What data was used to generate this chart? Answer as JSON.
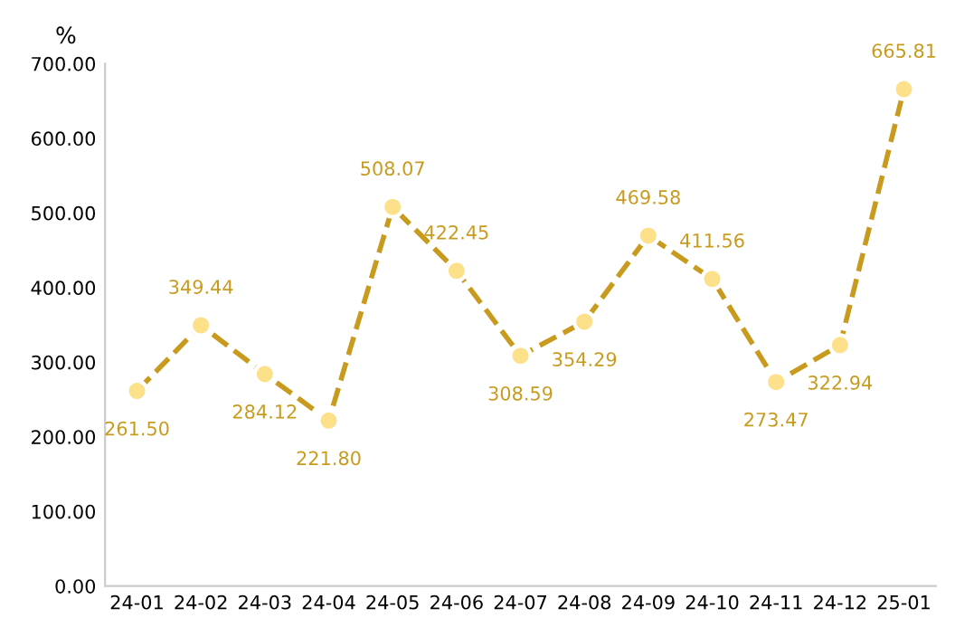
{
  "chart_data": {
    "type": "line",
    "ylabel": "%",
    "categories": [
      "24-01",
      "24-02",
      "24-03",
      "24-04",
      "24-05",
      "24-06",
      "24-07",
      "24-08",
      "24-09",
      "24-10",
      "24-11",
      "24-12",
      "25-01"
    ],
    "series": [
      {
        "color": "#c89b1e",
        "values": [
          261.5,
          349.44,
          284.12,
          221.8,
          508.07,
          422.45,
          308.59,
          354.29,
          469.58,
          411.56,
          273.47,
          322.94,
          665.81
        ],
        "value_labels": [
          "261.50",
          "349.44",
          "284.12",
          "221.80",
          "508.07",
          "422.45",
          "308.59",
          "354.29",
          "469.58",
          "411.56",
          "273.47",
          "322.94",
          "665.81"
        ]
      }
    ],
    "ylim": [
      0,
      700
    ],
    "yticks": [
      {
        "value": 0,
        "label": "0.00"
      },
      {
        "value": 100,
        "label": "100.00"
      },
      {
        "value": 200,
        "label": "200.00"
      },
      {
        "value": 300,
        "label": "300.00"
      },
      {
        "value": 400,
        "label": "400.00"
      },
      {
        "value": 500,
        "label": "500.00"
      },
      {
        "value": 600,
        "label": "600.00"
      },
      {
        "value": 700,
        "label": "700.00"
      }
    ],
    "marker": "circle",
    "line_style": "dashed",
    "grid": false,
    "legend": false
  }
}
